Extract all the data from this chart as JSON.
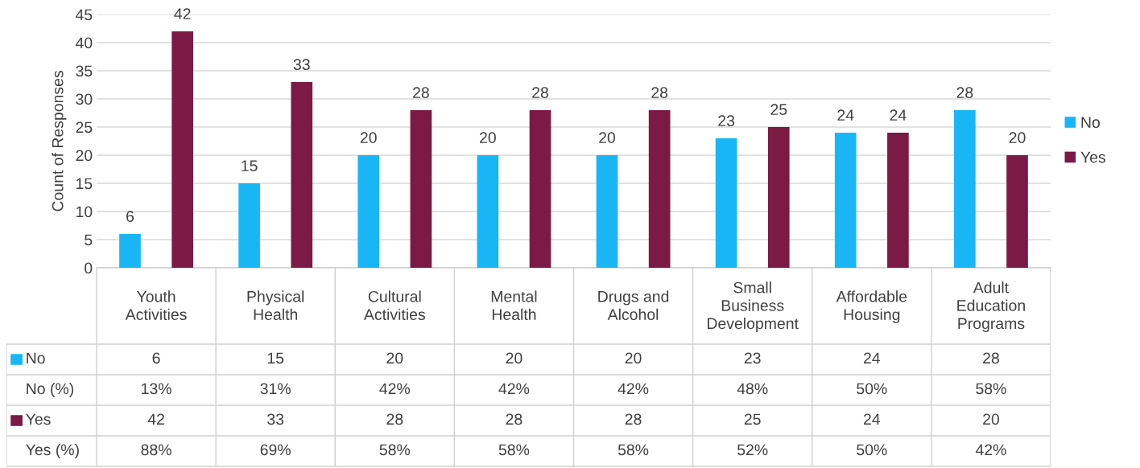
{
  "chart_data": {
    "type": "bar",
    "ylabel": "Count of Responses",
    "categories": [
      "Youth Activities",
      "Physical Health",
      "Cultural Activities",
      "Mental Health",
      "Drugs and Alcohol",
      "Small Business Development",
      "Affordable Housing",
      "Adult Education Programs"
    ],
    "series": [
      {
        "name": "No",
        "color": "#19b6f5",
        "values": [
          6,
          15,
          20,
          20,
          20,
          23,
          24,
          28
        ],
        "value_labels": [
          "6",
          "15",
          "20",
          "20",
          "20",
          "23",
          "24",
          "28"
        ]
      },
      {
        "name": "Yes",
        "color": "#7b1a44",
        "values": [
          42,
          33,
          28,
          28,
          28,
          25,
          24,
          20
        ],
        "value_labels": [
          "42",
          "33",
          "28",
          "28",
          "28",
          "25",
          "24",
          "20"
        ]
      }
    ],
    "annotations": [
      "6",
      "15",
      "20",
      "20",
      "20",
      "23",
      "24",
      "28",
      "No (%)",
      "13%",
      "31%",
      "42%",
      "42%",
      "42%",
      "48%",
      "50%",
      "58%",
      "42",
      "33",
      "28",
      "28",
      "28",
      "25",
      "24",
      "20",
      "Yes (%)",
      "88%",
      "69%",
      "58%",
      "58%",
      "58%",
      "52%",
      "50%",
      "42%"
    ],
    "ylim": [
      0,
      45
    ],
    "yticks": [
      0,
      5,
      10,
      15,
      20,
      25,
      30,
      35,
      40,
      45
    ],
    "grid": "y",
    "legend": "right"
  }
}
